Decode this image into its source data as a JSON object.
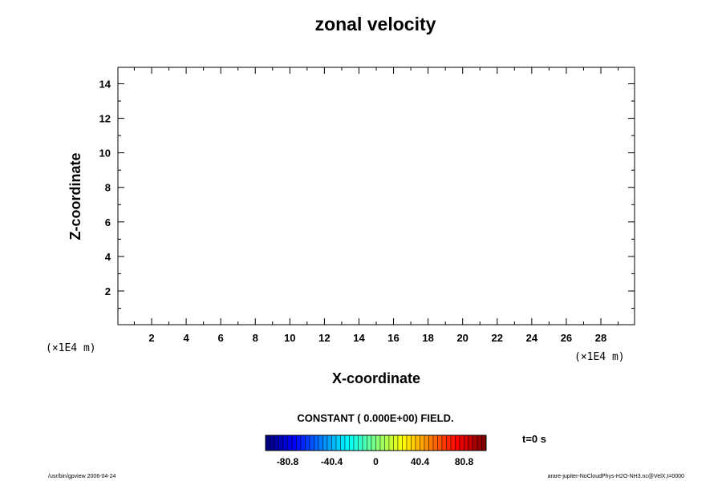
{
  "chart_data": {
    "type": "heatmap",
    "title": "zonal velocity",
    "xlabel": "X-coordinate",
    "ylabel": "Z-coordinate",
    "x_unit": "(×1E4 m)",
    "y_unit": "(×1E4 m)",
    "xlim": [
      0.05,
      29.95
    ],
    "ylim": [
      0.05,
      14.95
    ],
    "x_major_ticks": [
      2,
      4,
      6,
      8,
      10,
      12,
      14,
      16,
      18,
      20,
      22,
      24,
      26,
      28
    ],
    "y_major_ticks": [
      2,
      4,
      6,
      8,
      10,
      12,
      14
    ],
    "x_minor_step": 1,
    "y_minor_step": 1,
    "field_value": 0,
    "field_note": "CONSTANT ( 0.000E+00) FIELD.",
    "colorbar": {
      "range": [
        -101,
        101
      ],
      "levels": 50,
      "tick_values": [
        -80.8,
        -40.4,
        0,
        40.4,
        80.8
      ],
      "tick_labels": [
        "-80.8",
        "-40.4",
        "0",
        "40.4",
        "80.8"
      ],
      "colormap": "jet"
    },
    "time_label": "t=0 s",
    "grid": false
  },
  "footer": {
    "left": "/usr/bin/gpview 2006-04-24",
    "right": "arare-jupiter-NoCloudPhys-H2O-NH3.nc@VelX,t=0000"
  }
}
